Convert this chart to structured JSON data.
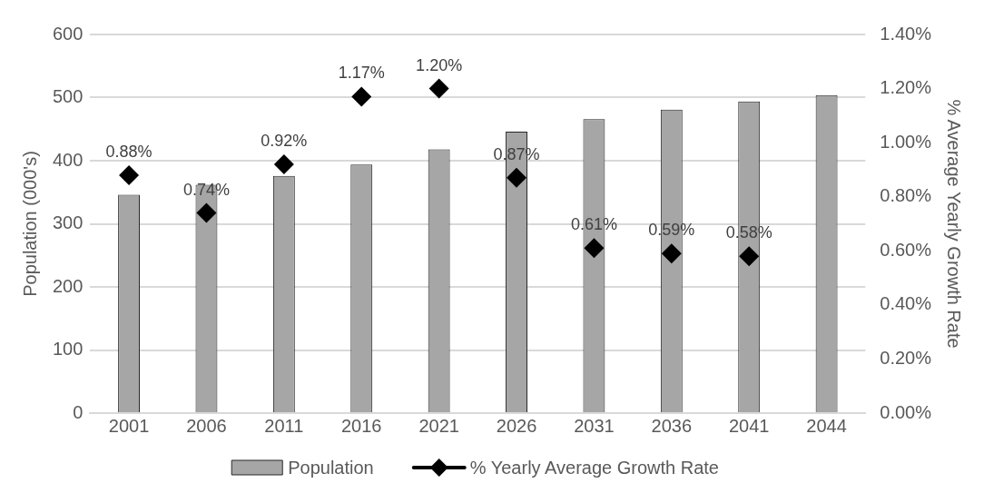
{
  "chart_data": {
    "type": "bar",
    "categories": [
      "2001",
      "2006",
      "2011",
      "2016",
      "2021",
      "2026",
      "2031",
      "2036",
      "2041",
      "2044"
    ],
    "series": [
      {
        "name": "Population",
        "color": "#a6a6a6",
        "values": [
          346,
          362,
          376,
          394,
          418,
          446,
          466,
          481,
          494,
          504
        ]
      },
      {
        "name": "% Yearly Average Growth Rate",
        "type": "scatter",
        "axis": "y2",
        "color": "#000000",
        "marker": "diamond",
        "values": [
          0.88,
          0.74,
          0.92,
          1.17,
          1.2,
          0.87,
          0.61,
          0.59,
          0.58,
          null
        ],
        "value_labels": [
          "0.88%",
          "0.74%",
          "0.92%",
          "1.17%",
          "1.20%",
          "0.87%",
          "0.61%",
          "0.59%",
          "0.58%",
          null
        ]
      }
    ],
    "ylabel": "Population (000's)",
    "y2label": "% Average Yearly Growth Rate",
    "ylim": [
      0,
      600
    ],
    "yticks": [
      0,
      100,
      200,
      300,
      400,
      500,
      600
    ],
    "y2lim": [
      0,
      1.4
    ],
    "y2ticks": [
      {
        "value": 0,
        "label": "0.00%"
      },
      {
        "value": 0.2,
        "label": "0.20%"
      },
      {
        "value": 0.4,
        "label": "0.40%"
      },
      {
        "value": 0.6,
        "label": "0.60%"
      },
      {
        "value": 0.8,
        "label": "0.80%"
      },
      {
        "value": 1,
        "label": "1.00%"
      },
      {
        "value": 1.2,
        "label": "1.20%"
      },
      {
        "value": 1.4,
        "label": "1.40%"
      }
    ],
    "grid": "y",
    "legend": "bottom"
  }
}
